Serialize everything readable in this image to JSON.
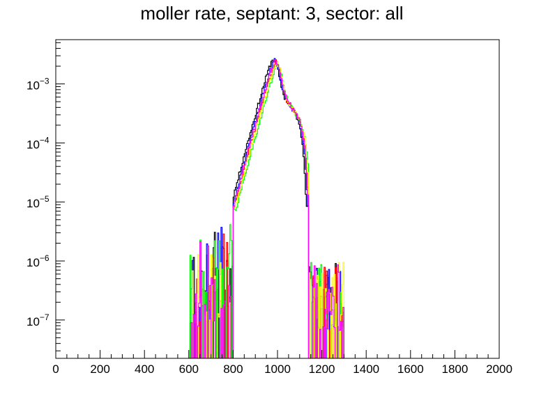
{
  "chart_data": {
    "type": "line",
    "subtype": "step-histogram",
    "title": "moller rate, septant: 3, sector: all",
    "xlabel": "",
    "ylabel": "",
    "xlim": [
      0,
      2000
    ],
    "ylim_log10": [
      -7.65,
      -2.25
    ],
    "y_scale": "log",
    "grid": false,
    "legend": "none",
    "x_ticks": [
      {
        "value": 0,
        "label": "0"
      },
      {
        "value": 200,
        "label": "200"
      },
      {
        "value": 400,
        "label": "400"
      },
      {
        "value": 600,
        "label": "600"
      },
      {
        "value": 800,
        "label": "800"
      },
      {
        "value": 1000,
        "label": "1000"
      },
      {
        "value": 1200,
        "label": "1200"
      },
      {
        "value": 1400,
        "label": "1400"
      },
      {
        "value": 1600,
        "label": "1600"
      },
      {
        "value": 1800,
        "label": "1800"
      },
      {
        "value": 2000,
        "label": "2000"
      }
    ],
    "y_ticks": [
      {
        "exp": -7,
        "base": "10",
        "sup": "−7"
      },
      {
        "exp": -6,
        "base": "10",
        "sup": "−6"
      },
      {
        "exp": -5,
        "base": "10",
        "sup": "−5"
      },
      {
        "exp": -4,
        "base": "10",
        "sup": "−4"
      },
      {
        "exp": -3,
        "base": "10",
        "sup": "−3"
      }
    ],
    "core_profile": [
      {
        "x": 800,
        "log10y": -5.1
      },
      {
        "x": 830,
        "log10y": -4.7
      },
      {
        "x": 860,
        "log10y": -4.25
      },
      {
        "x": 890,
        "log10y": -3.85
      },
      {
        "x": 920,
        "log10y": -3.45
      },
      {
        "x": 950,
        "log10y": -3.05
      },
      {
        "x": 975,
        "log10y": -2.75
      },
      {
        "x": 990,
        "log10y": -2.62
      },
      {
        "x": 1005,
        "log10y": -2.72
      },
      {
        "x": 1020,
        "log10y": -3.0
      },
      {
        "x": 1040,
        "log10y": -3.28
      },
      {
        "x": 1070,
        "log10y": -3.45
      },
      {
        "x": 1095,
        "log10y": -3.6
      },
      {
        "x": 1110,
        "log10y": -3.8
      },
      {
        "x": 1120,
        "log10y": -4.0
      },
      {
        "x": 1130,
        "log10y": -4.4
      },
      {
        "x": 1140,
        "log10y": -5.1
      }
    ],
    "series": [
      {
        "color": "#000000",
        "xshift": -12,
        "yshift": 0.06,
        "seed": 11
      },
      {
        "color": "#0000ff",
        "xshift": -6,
        "yshift": 0.03,
        "seed": 23
      },
      {
        "color": "#ff0000",
        "xshift": 0,
        "yshift": 0.0,
        "seed": 37
      },
      {
        "color": "#00ff00",
        "xshift": 8,
        "yshift": -0.05,
        "seed": 41
      },
      {
        "color": "#ffff00",
        "xshift": 4,
        "yshift": -0.02,
        "seed": 53
      },
      {
        "color": "#ff00ff",
        "xshift": -2,
        "yshift": 0.02,
        "seed": 67
      }
    ],
    "left_tail_range": [
      600,
      800
    ],
    "right_tail_range": [
      1140,
      1300
    ]
  }
}
